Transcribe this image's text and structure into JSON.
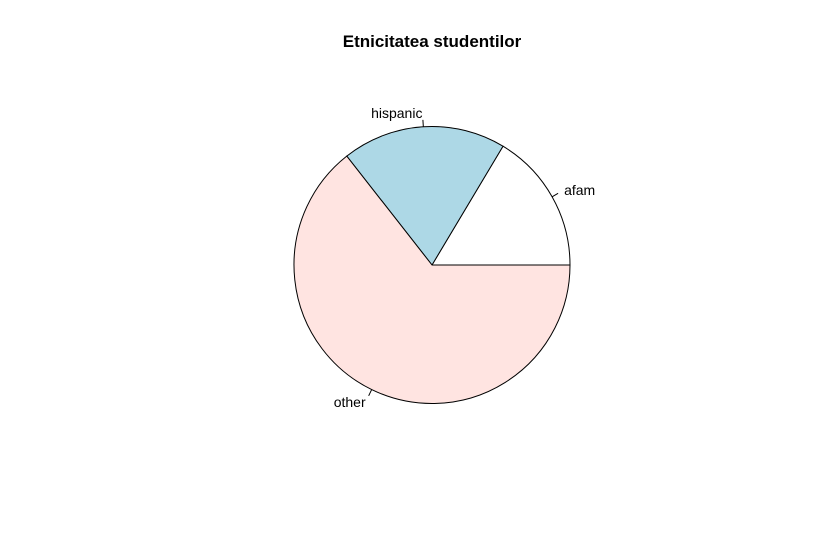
{
  "chart_data": {
    "type": "pie",
    "title": "Etnicitatea studentilor",
    "categories": [
      "afam",
      "hispanic",
      "other"
    ],
    "values": [
      16.4,
      19.2,
      64.4
    ],
    "colors": [
      "#ffffff",
      "#add8e6",
      "#ffe4e1"
    ],
    "start_angle_deg": 0,
    "direction": "counterclockwise",
    "legend": "none"
  }
}
